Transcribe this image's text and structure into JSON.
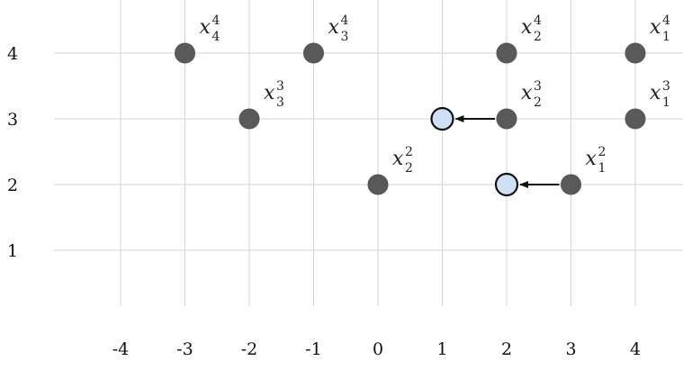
{
  "grid": {
    "x_ticks": [
      "-4",
      "-3",
      "-2",
      "-1",
      "0",
      "1",
      "2",
      "3",
      "4"
    ],
    "y_ticks": [
      "1",
      "2",
      "3",
      "4"
    ],
    "line_color": "#d4d4d4"
  },
  "colors": {
    "point_fill": "#595959",
    "new_point_fill": "#cfe0f4",
    "new_point_stroke": "#111111",
    "arrow": "#111111"
  },
  "points": [
    {
      "x": -3,
      "y": 4,
      "label": {
        "base": "x",
        "sub": "4",
        "sup": "4"
      }
    },
    {
      "x": -1,
      "y": 4,
      "label": {
        "base": "x",
        "sub": "3",
        "sup": "4"
      }
    },
    {
      "x": 2,
      "y": 4,
      "label": {
        "base": "x",
        "sub": "2",
        "sup": "4"
      }
    },
    {
      "x": 4,
      "y": 4,
      "label": {
        "base": "x",
        "sub": "1",
        "sup": "4"
      }
    },
    {
      "x": -2,
      "y": 3,
      "label": {
        "base": "x",
        "sub": "3",
        "sup": "3"
      }
    },
    {
      "x": 2,
      "y": 3,
      "label": {
        "base": "x",
        "sub": "2",
        "sup": "3"
      }
    },
    {
      "x": 4,
      "y": 3,
      "label": {
        "base": "x",
        "sub": "1",
        "sup": "3"
      }
    },
    {
      "x": 0,
      "y": 2,
      "label": {
        "base": "x",
        "sub": "2",
        "sup": "2"
      }
    },
    {
      "x": 3,
      "y": 2,
      "label": {
        "base": "x",
        "sub": "1",
        "sup": "2"
      }
    }
  ],
  "moved_points": [
    {
      "x": 1,
      "y": 3,
      "from_x": 2
    },
    {
      "x": 2,
      "y": 2,
      "from_x": 3
    }
  ]
}
